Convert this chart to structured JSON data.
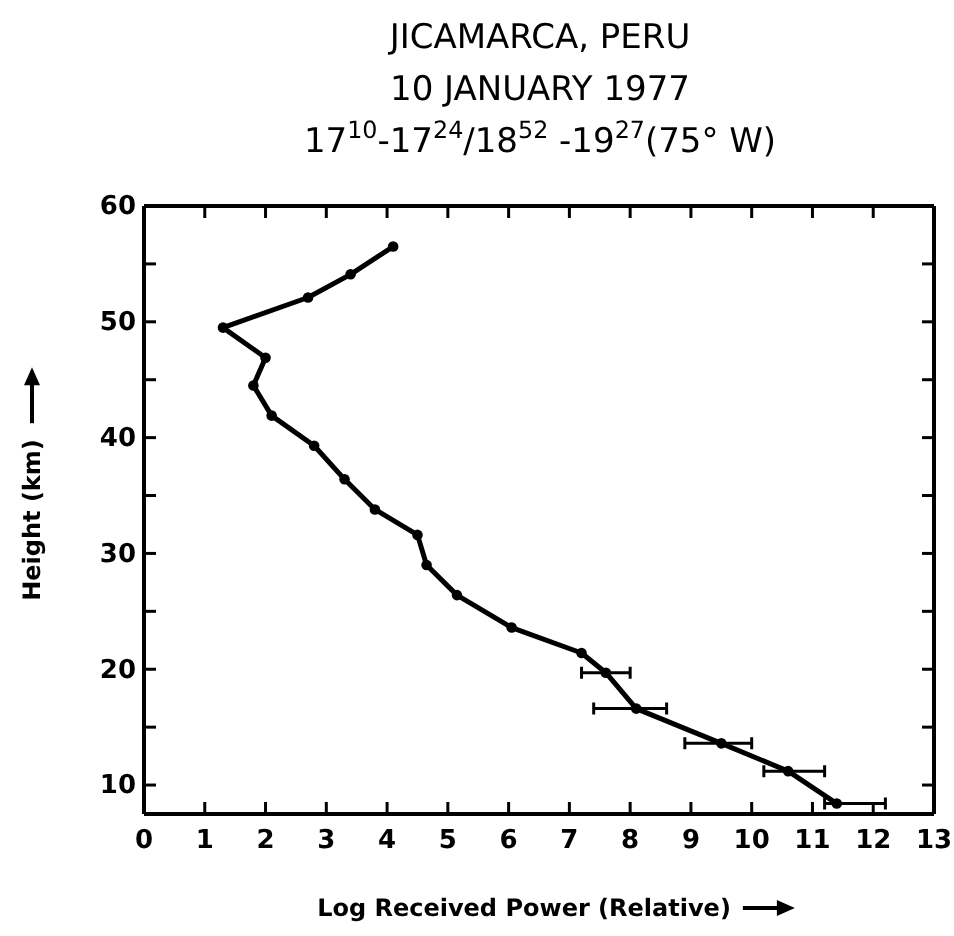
{
  "chart_data": {
    "type": "line",
    "title": "JICAMARCA, PERU\n10 JANUARY 1977\n17$^{10}$-17$^{24}$/18$^{52}$ -19$^{27}$(75° W)",
    "xlabel": "Log Received Power (Relative)",
    "ylabel": "Height (km)",
    "xlim": [
      0,
      13
    ],
    "xticks": [
      0,
      1,
      2,
      3,
      4,
      5,
      6,
      7,
      8,
      9,
      10,
      11,
      12,
      13
    ],
    "ylim": [
      7.5,
      60
    ],
    "yticks": [
      10,
      {
        "value": 15,
        "label": null
      },
      20,
      {
        "value": 25,
        "label": null
      },
      30,
      {
        "value": 35,
        "label": null
      },
      40,
      {
        "value": 45,
        "label": null
      },
      50,
      {
        "value": 55,
        "label": null
      },
      60
    ],
    "marker": "circle",
    "line_style": "solid",
    "series": [
      {
        "color": "#000000",
        "x": [
          4.1,
          3.4,
          2.7,
          1.3,
          2.0,
          1.8,
          2.1,
          2.8,
          3.3,
          3.8,
          4.5,
          4.65,
          5.15,
          6.05,
          7.2,
          7.6,
          8.1,
          9.5,
          10.6,
          11.4
        ],
        "values": [
          56.5,
          54.1,
          52.1,
          49.5,
          46.9,
          44.5,
          41.9,
          39.3,
          36.4,
          33.8,
          31.6,
          29.0,
          26.4,
          23.6,
          21.4,
          19.7,
          16.6,
          13.6,
          11.2,
          8.4
        ],
        "xerrors": [
          null,
          null,
          null,
          null,
          null,
          null,
          null,
          null,
          null,
          null,
          null,
          null,
          null,
          null,
          null,
          [
            7.2,
            8.0
          ],
          [
            7.4,
            8.6
          ],
          [
            8.9,
            10.0
          ],
          [
            10.2,
            11.2
          ],
          [
            11.2,
            12.2
          ]
        ]
      }
    ]
  }
}
